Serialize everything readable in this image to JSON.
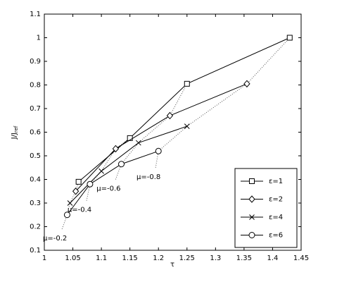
{
  "chart_data": {
    "type": "line",
    "xlabel": "τ",
    "ylabel": {
      "text": "J/J",
      "subscript": "ref"
    },
    "xlim": [
      1,
      1.45
    ],
    "xticks": [
      1,
      1.05,
      1.1,
      1.15,
      1.2,
      1.25,
      1.3,
      1.35,
      1.4,
      1.45
    ],
    "ylim": [
      0.1,
      1.1
    ],
    "yticks": [
      0.1,
      0.2,
      0.3,
      0.4,
      0.5,
      0.6,
      0.7,
      0.8,
      0.9,
      1,
      1.1
    ],
    "legend": "lower right",
    "series": [
      {
        "name": "ε=1",
        "color": "#000000",
        "marker": "square",
        "x": [
          1.06,
          1.15,
          1.25,
          1.43
        ],
        "values": [
          0.39,
          0.575,
          0.805,
          1.0
        ]
      },
      {
        "name": "ε=2",
        "color": "#000000",
        "marker": "diamond",
        "x": [
          1.055,
          1.125,
          1.22,
          1.355
        ],
        "values": [
          0.35,
          0.53,
          0.67,
          0.805
        ]
      },
      {
        "name": "ε=4",
        "color": "#000000",
        "marker": "x",
        "x": [
          1.045,
          1.1,
          1.165,
          1.25
        ],
        "values": [
          0.3,
          0.435,
          0.555,
          0.625
        ]
      },
      {
        "name": "ε=6",
        "color": "#000000",
        "marker": "circle",
        "x": [
          1.04,
          1.08,
          1.135,
          1.2
        ],
        "values": [
          0.25,
          0.38,
          0.465,
          0.52
        ]
      }
    ],
    "guides": [
      {
        "label": "μ=-0.2",
        "x": [
          1.031,
          1.04,
          1.045,
          1.055,
          1.06
        ],
        "values": [
          0.19,
          0.25,
          0.3,
          0.35,
          0.39
        ]
      },
      {
        "label": "μ=-0.4",
        "x": [
          1.074,
          1.08,
          1.1,
          1.125,
          1.15
        ],
        "values": [
          0.31,
          0.38,
          0.435,
          0.53,
          0.575
        ]
      },
      {
        "label": "μ=-0.6",
        "x": [
          1.125,
          1.135,
          1.165,
          1.22,
          1.25
        ],
        "values": [
          0.4,
          0.465,
          0.555,
          0.67,
          0.805
        ]
      },
      {
        "label": "μ=-0.8",
        "x": [
          1.195,
          1.2,
          1.25,
          1.355,
          1.43
        ],
        "values": [
          0.45,
          0.52,
          0.625,
          0.805,
          1.0
        ]
      }
    ]
  }
}
